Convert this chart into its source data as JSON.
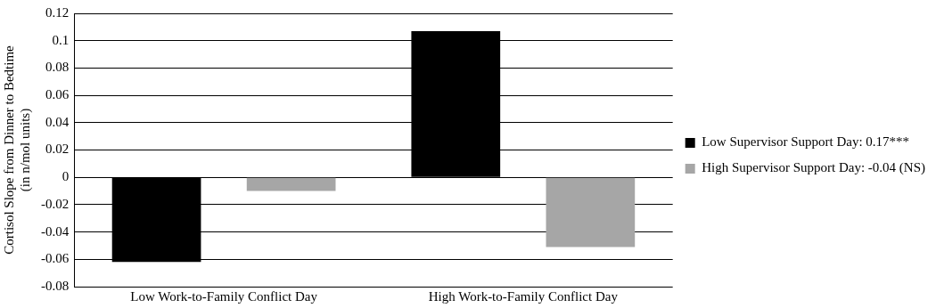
{
  "chart_data": {
    "type": "bar",
    "ylabel": "Cortisol Slope from Dinner to Bedtime\n(in n/mol units)",
    "categories": [
      "Low Work-to-Family Conflict Day",
      "High Work-to-Family Conflict Day"
    ],
    "series": [
      {
        "name": "Low Supervisor Support Day: 0.17***",
        "color": "#000000",
        "values": [
          -0.062,
          0.107
        ]
      },
      {
        "name": "High Supervisor Support Day: -0.04 (NS)",
        "color": "#a6a6a6",
        "values": [
          -0.01,
          -0.051
        ]
      }
    ],
    "ylim": [
      -0.08,
      0.12
    ],
    "yticks": [
      -0.08,
      -0.06,
      -0.04,
      -0.02,
      0,
      0.02,
      0.04,
      0.06,
      0.08,
      0.1,
      0.12
    ],
    "grid": "y",
    "legend": "right"
  }
}
